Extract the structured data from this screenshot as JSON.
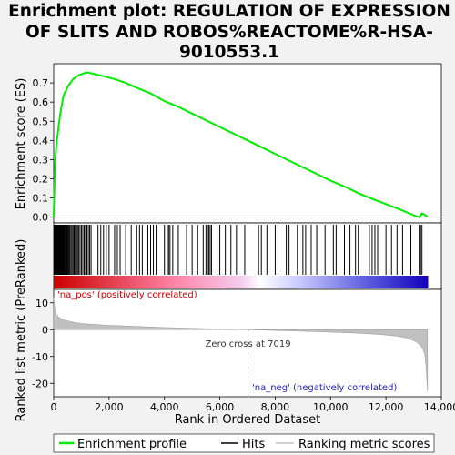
{
  "title_lines": [
    "Enrichment plot: REGULATION OF EXPRESSION",
    "OF SLITS AND ROBOS%REACTOME%R-HSA-",
    "9010553.1"
  ],
  "colors": {
    "es_line": "#00ee00",
    "hits": "#000000",
    "metric_fill": "#c0c0c0",
    "pos_label": "#cc0000",
    "neg_label": "#2222bb"
  },
  "chart_data": [
    {
      "type": "line",
      "name": "enrichment-score",
      "ylabel": "Enrichment score (ES)",
      "xlim": [
        0,
        14000
      ],
      "ylim": [
        -0.03,
        0.8
      ],
      "yticks": [
        "0.0",
        "0.1",
        "0.2",
        "0.3",
        "0.4",
        "0.5",
        "0.6",
        "0.7"
      ],
      "ytick_values": [
        0.0,
        0.1,
        0.2,
        0.3,
        0.4,
        0.5,
        0.6,
        0.7
      ],
      "series": [
        {
          "name": "Enrichment profile",
          "x": [
            0,
            30,
            60,
            100,
            150,
            200,
            250,
            300,
            350,
            400,
            450,
            500,
            600,
            700,
            800,
            900,
            1000,
            1100,
            1200,
            1300,
            1500,
            1800,
            2200,
            2600,
            3000,
            3500,
            4000,
            4500,
            5000,
            5500,
            6000,
            6500,
            7000,
            7500,
            8000,
            8500,
            9000,
            9500,
            10000,
            10500,
            11000,
            11500,
            12000,
            12500,
            13000,
            13200,
            13300,
            13500
          ],
          "y": [
            0.0,
            0.18,
            0.3,
            0.38,
            0.44,
            0.5,
            0.55,
            0.59,
            0.63,
            0.65,
            0.66,
            0.68,
            0.7,
            0.72,
            0.73,
            0.74,
            0.745,
            0.75,
            0.755,
            0.752,
            0.745,
            0.735,
            0.72,
            0.7,
            0.675,
            0.645,
            0.605,
            0.575,
            0.54,
            0.505,
            0.47,
            0.435,
            0.4,
            0.365,
            0.33,
            0.295,
            0.26,
            0.225,
            0.19,
            0.16,
            0.125,
            0.095,
            0.068,
            0.04,
            0.01,
            0.0,
            0.02,
            0.003
          ]
        }
      ]
    },
    {
      "type": "bar",
      "name": "hits",
      "legend": "Hits",
      "hit_positions": [
        10,
        25,
        40,
        55,
        70,
        85,
        100,
        120,
        140,
        160,
        180,
        200,
        220,
        240,
        260,
        280,
        300,
        320,
        340,
        360,
        380,
        400,
        430,
        460,
        490,
        520,
        550,
        580,
        620,
        660,
        700,
        740,
        780,
        820,
        860,
        900,
        950,
        1000,
        1050,
        1100,
        1150,
        1200,
        1250,
        1300,
        1350,
        1600,
        1700,
        1800,
        1900,
        2000,
        2200,
        2300,
        2400,
        2600,
        2800,
        3000,
        3100,
        3200,
        3400,
        3500,
        3600,
        3700,
        4000,
        4100,
        4150,
        4200,
        4300,
        4500,
        4800,
        5000,
        5200,
        5400,
        5500,
        5550,
        5600,
        5650,
        5700,
        5900,
        6000,
        6200,
        6400,
        6600,
        6900,
        7400,
        7500,
        7700,
        8000,
        8100,
        8400,
        8500,
        8800,
        9000,
        9100,
        9300,
        9500,
        9800,
        10100,
        10200,
        10500,
        10700,
        10900,
        11000,
        11400,
        11500,
        11600,
        11700,
        12000,
        12200,
        12400,
        12600,
        12900,
        13200,
        13250,
        13300
      ]
    },
    {
      "type": "area",
      "name": "ranked-list-metric",
      "xlabel": "Rank in Ordered Dataset",
      "ylabel": "Ranked list metric (PreRanked)",
      "xlim": [
        0,
        14000
      ],
      "ylim": [
        -25,
        15
      ],
      "xticks": [
        "0",
        "2,000",
        "4,000",
        "6,000",
        "8,000",
        "10,000",
        "12,000",
        "14,000"
      ],
      "xtick_values": [
        0,
        2000,
        4000,
        6000,
        8000,
        10000,
        12000,
        14000
      ],
      "yticks": [
        "10",
        "0",
        "-10",
        "-20"
      ],
      "ytick_values": [
        10,
        0,
        -10,
        -20
      ],
      "x": [
        0,
        50,
        100,
        200,
        400,
        700,
        1000,
        1500,
        2000,
        3000,
        4000,
        5000,
        6000,
        7019,
        8000,
        9000,
        10000,
        11000,
        11800,
        12400,
        12800,
        13100,
        13300,
        13400,
        13450,
        13500
      ],
      "y": [
        12,
        7,
        5.5,
        4.5,
        3.5,
        2.8,
        2.3,
        1.9,
        1.6,
        1.2,
        0.8,
        0.5,
        0.25,
        0,
        -0.3,
        -0.6,
        -0.9,
        -1.3,
        -1.8,
        -2.4,
        -3.2,
        -4.5,
        -6.5,
        -9,
        -14,
        -23
      ],
      "zero_cross": 7019,
      "zero_cross_label": "Zero cross at 7019",
      "pos_label": "'na_pos' (positively correlated)",
      "neg_label": "'na_neg' (negatively correlated)"
    }
  ],
  "legend": {
    "items": [
      {
        "label": "Enrichment profile",
        "color": "#00ee00"
      },
      {
        "label": "Hits",
        "color": "#000000"
      },
      {
        "label": "Ranking metric scores",
        "color": "#c0c0c0"
      }
    ]
  }
}
